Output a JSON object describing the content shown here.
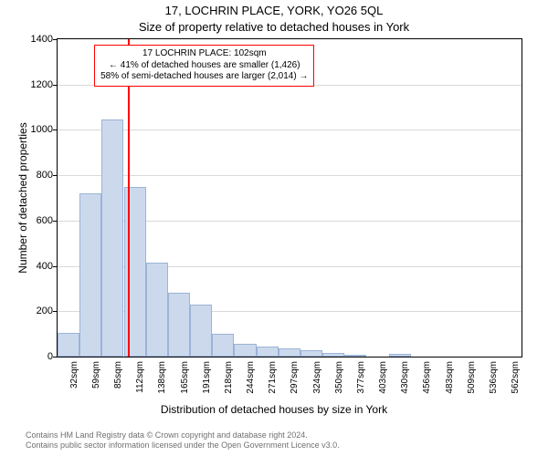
{
  "titles": {
    "main": "17, LOCHRIN PLACE, YORK, YO26 5QL",
    "sub": "Size of property relative to detached houses in York"
  },
  "axes": {
    "ylabel": "Number of detached properties",
    "xlabel": "Distribution of detached houses by size in York"
  },
  "chart": {
    "type": "histogram",
    "background_color": "#ffffff",
    "grid_color": "#d9d9d9",
    "border_color": "#000000",
    "bar_fill": "#ccd9ed",
    "bar_border": "#9bb3d6",
    "marker_line_color": "#ff0000",
    "ylim": [
      0,
      1400
    ],
    "yticks": [
      0,
      200,
      400,
      600,
      800,
      1000,
      1200,
      1400
    ],
    "x_tick_labels": [
      "32sqm",
      "59sqm",
      "85sqm",
      "112sqm",
      "138sqm",
      "165sqm",
      "191sqm",
      "218sqm",
      "244sqm",
      "271sqm",
      "297sqm",
      "324sqm",
      "350sqm",
      "377sqm",
      "403sqm",
      "430sqm",
      "456sqm",
      "483sqm",
      "509sqm",
      "536sqm",
      "562sqm"
    ],
    "x_range": [
      18,
      575
    ],
    "bar_bin_width_sqm": 26.5,
    "bars": [
      {
        "x_start": 18,
        "value": 105
      },
      {
        "x_start": 44.5,
        "value": 720
      },
      {
        "x_start": 71,
        "value": 1045
      },
      {
        "x_start": 97.5,
        "value": 750
      },
      {
        "x_start": 124,
        "value": 415
      },
      {
        "x_start": 150.5,
        "value": 280
      },
      {
        "x_start": 177,
        "value": 230
      },
      {
        "x_start": 203.5,
        "value": 100
      },
      {
        "x_start": 230,
        "value": 55
      },
      {
        "x_start": 256.5,
        "value": 45
      },
      {
        "x_start": 283,
        "value": 38
      },
      {
        "x_start": 309.5,
        "value": 30
      },
      {
        "x_start": 336,
        "value": 18
      },
      {
        "x_start": 362.5,
        "value": 8
      },
      {
        "x_start": 389,
        "value": 0
      },
      {
        "x_start": 415.5,
        "value": 14
      },
      {
        "x_start": 442,
        "value": 0
      },
      {
        "x_start": 468.5,
        "value": 0
      },
      {
        "x_start": 495,
        "value": 0
      },
      {
        "x_start": 521.5,
        "value": 0
      },
      {
        "x_start": 548,
        "value": 0
      }
    ],
    "marker_x_sqm": 102
  },
  "annotation": {
    "line1": "17 LOCHRIN PLACE: 102sqm",
    "line2": "← 41% of detached houses are smaller (1,426)",
    "line3": "58% of semi-detached houses are larger (2,014) →",
    "border_color": "#ff0000",
    "background_color": "#ffffff",
    "fontsize": 10
  },
  "footer": {
    "line1": "Contains HM Land Registry data © Crown copyright and database right 2024.",
    "line2": "Contains public sector information licensed under the Open Government Licence v3.0.",
    "color": "#707070"
  }
}
